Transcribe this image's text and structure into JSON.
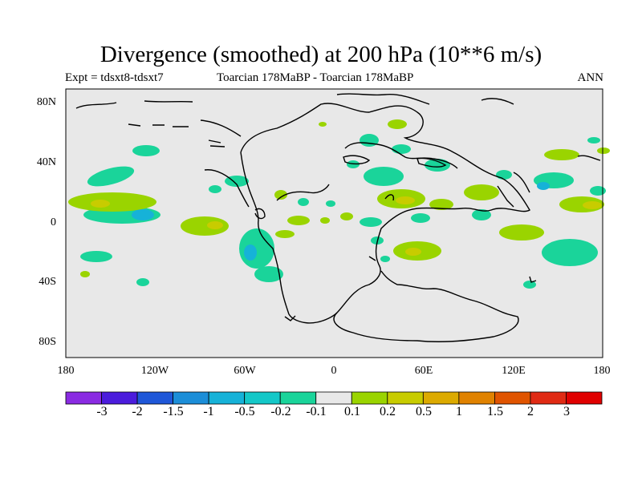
{
  "title": "Divergence (smoothed) at 200 hPa (10**6 m/s)",
  "subtitle_left": "Expt = tdsxt8-tdsxt7",
  "subtitle_center": "Toarcian 178MaBP - Toarcian 178MaBP",
  "subtitle_right": "ANN",
  "lat_ticks": [
    "80N",
    "40N",
    "0",
    "40S",
    "80S"
  ],
  "lon_ticks": [
    "180",
    "120W",
    "60W",
    "0",
    "60E",
    "120E",
    "180"
  ],
  "colorbar": {
    "colors": [
      "#8a2be2",
      "#4b1cdc",
      "#1f57d8",
      "#1c8ed8",
      "#16b2d8",
      "#14c8c8",
      "#1ad49a",
      "#e8e8e8",
      "#9ad400",
      "#c8cc00",
      "#dcaa00",
      "#e08200",
      "#e05400",
      "#e02a14",
      "#e00000"
    ],
    "labels": [
      "-3",
      "-2",
      "-1.5",
      "-1",
      "-0.5",
      "-0.2",
      "-0.1",
      "0.1",
      "0.2",
      "0.5",
      "1",
      "1.5",
      "2",
      "3"
    ]
  },
  "background_color": "#e8e8e8"
}
